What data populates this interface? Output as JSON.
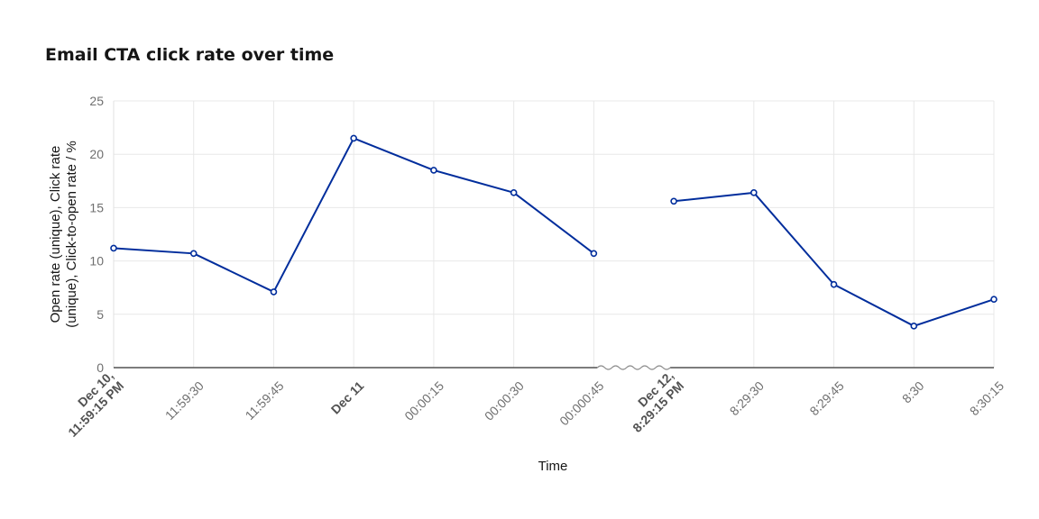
{
  "chart_data": {
    "type": "line",
    "title": "Email CTA click rate over time",
    "xlabel": "Time",
    "ylabel": "Open rate (unique), Click rate (unique), Click-to-open rate / %",
    "ylim": [
      0,
      25
    ],
    "yticks": [
      "0",
      "5",
      "10",
      "15",
      "20",
      "25"
    ],
    "grid": true,
    "axis_break_after": "00:000:45",
    "x": [
      {
        "label": "Dec 10, 11:59:15 PM",
        "lines": [
          "Dec 10,",
          "11:59:15 PM"
        ],
        "bold": true
      },
      {
        "label": "11:59:30",
        "lines": [
          "11:59:30"
        ],
        "bold": false
      },
      {
        "label": "11:59:45",
        "lines": [
          "11:59:45"
        ],
        "bold": false
      },
      {
        "label": "Dec 11",
        "lines": [
          "Dec 11"
        ],
        "bold": true
      },
      {
        "label": "00:00:15",
        "lines": [
          "00:00:15"
        ],
        "bold": false
      },
      {
        "label": "00:00:30",
        "lines": [
          "00:00:30"
        ],
        "bold": false
      },
      {
        "label": "00:000:45",
        "lines": [
          "00:000:45"
        ],
        "bold": false
      },
      {
        "label": "Dec 12, 8:29:15 PM",
        "lines": [
          "Dec 12,",
          "8:29:15 PM"
        ],
        "bold": true
      },
      {
        "label": "8:29:30",
        "lines": [
          "8:29:30"
        ],
        "bold": false
      },
      {
        "label": "8:29:45",
        "lines": [
          "8:29:45"
        ],
        "bold": false
      },
      {
        "label": "8:30",
        "lines": [
          "8:30"
        ],
        "bold": false
      },
      {
        "label": "8:30:15",
        "lines": [
          "8:30:15"
        ],
        "bold": false
      }
    ],
    "series": [
      {
        "color": "#002d9c",
        "segments": [
          [
            11.2,
            10.7,
            7.1,
            21.5,
            18.5,
            16.4,
            10.7
          ],
          [
            15.6,
            16.4,
            7.8,
            3.9,
            6.4
          ]
        ]
      }
    ]
  }
}
